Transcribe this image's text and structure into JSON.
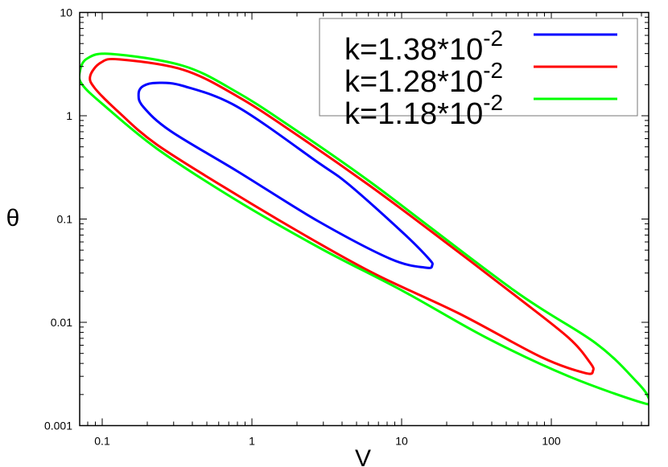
{
  "chart_data": {
    "type": "line",
    "title": "",
    "xlabel": "V",
    "ylabel": "θ",
    "xscale": "log",
    "yscale": "log",
    "xlim": [
      0.0707,
      447
    ],
    "ylim": [
      0.001,
      10
    ],
    "xticks": [
      {
        "value": 0.1,
        "label": "0.1"
      },
      {
        "value": 1,
        "label": "1"
      },
      {
        "value": 10,
        "label": "10"
      },
      {
        "value": 100,
        "label": "100"
      }
    ],
    "yticks": [
      {
        "value": 0.001,
        "label": "0.001"
      },
      {
        "value": 0.01,
        "label": "0.01"
      },
      {
        "value": 0.1,
        "label": "0.1"
      },
      {
        "value": 1,
        "label": "1"
      },
      {
        "value": 10,
        "label": "10"
      }
    ],
    "grid": false,
    "legend_position": "top-right",
    "series": [
      {
        "name": "k=1.38*10^-2",
        "label_main": "k=1.38*10",
        "label_exp": "-2",
        "color": "#0000ff",
        "closed": true,
        "points": [
          [
            0.175,
            1.62
          ],
          [
            0.188,
            1.94
          ],
          [
            0.232,
            2.08
          ],
          [
            0.349,
            1.94
          ],
          [
            0.8,
            1.22
          ],
          [
            2.76,
            0.354
          ],
          [
            4.47,
            0.214
          ],
          [
            10.4,
            0.0718
          ],
          [
            15.2,
            0.0412
          ],
          [
            16.0,
            0.0357
          ],
          [
            14.5,
            0.0338
          ],
          [
            8.41,
            0.0412
          ],
          [
            2.76,
            0.0957
          ],
          [
            0.8,
            0.29
          ],
          [
            0.286,
            0.711
          ],
          [
            0.188,
            1.22
          ]
        ]
      },
      {
        "name": "k=1.28*10^-2",
        "label_main": "k=1.28*10",
        "label_exp": "-2",
        "color": "#ff0000",
        "closed": true,
        "points": [
          [
            0.083,
            2.41
          ],
          [
            0.0976,
            3.26
          ],
          [
            0.13,
            3.51
          ],
          [
            0.349,
            2.78
          ],
          [
            0.8,
            1.54
          ],
          [
            1.83,
            0.711
          ],
          [
            6.02,
            0.214
          ],
          [
            15.8,
            0.0757
          ],
          [
            55.9,
            0.0187
          ],
          [
            130,
            0.00711
          ],
          [
            181,
            0.00408
          ],
          [
            190,
            0.00341
          ],
          [
            168,
            0.00323
          ],
          [
            85,
            0.00463
          ],
          [
            24.1,
            0.0122
          ],
          [
            6.81,
            0.0288
          ],
          [
            2.53,
            0.0633
          ],
          [
            0.8,
            0.17
          ],
          [
            0.232,
            0.525
          ],
          [
            0.125,
            1.13
          ],
          [
            0.0895,
            1.84
          ]
        ]
      },
      {
        "name": "k=1.18*10^-2",
        "label_main": "k=1.18*10",
        "label_exp": "-2",
        "color": "#00ff00",
        "closed": true,
        "points": [
          [
            0.0707,
            2.63
          ],
          [
            0.079,
            3.57
          ],
          [
            0.115,
            3.97
          ],
          [
            0.349,
            3.04
          ],
          [
            0.8,
            1.68
          ],
          [
            1.83,
            0.778
          ],
          [
            6.56,
            0.214
          ],
          [
            55.9,
            0.0205
          ],
          [
            198,
            0.00628
          ],
          [
            372,
            0.00265
          ],
          [
            447,
            0.00185
          ],
          [
            421,
            0.00164
          ],
          [
            130,
            0.00301
          ],
          [
            36.7,
            0.00711
          ],
          [
            10.4,
            0.0198
          ],
          [
            2.94,
            0.0511
          ],
          [
            0.8,
            0.15
          ],
          [
            0.232,
            0.48
          ],
          [
            0.101,
            1.29
          ],
          [
            0.0734,
            2.01
          ]
        ]
      }
    ]
  }
}
